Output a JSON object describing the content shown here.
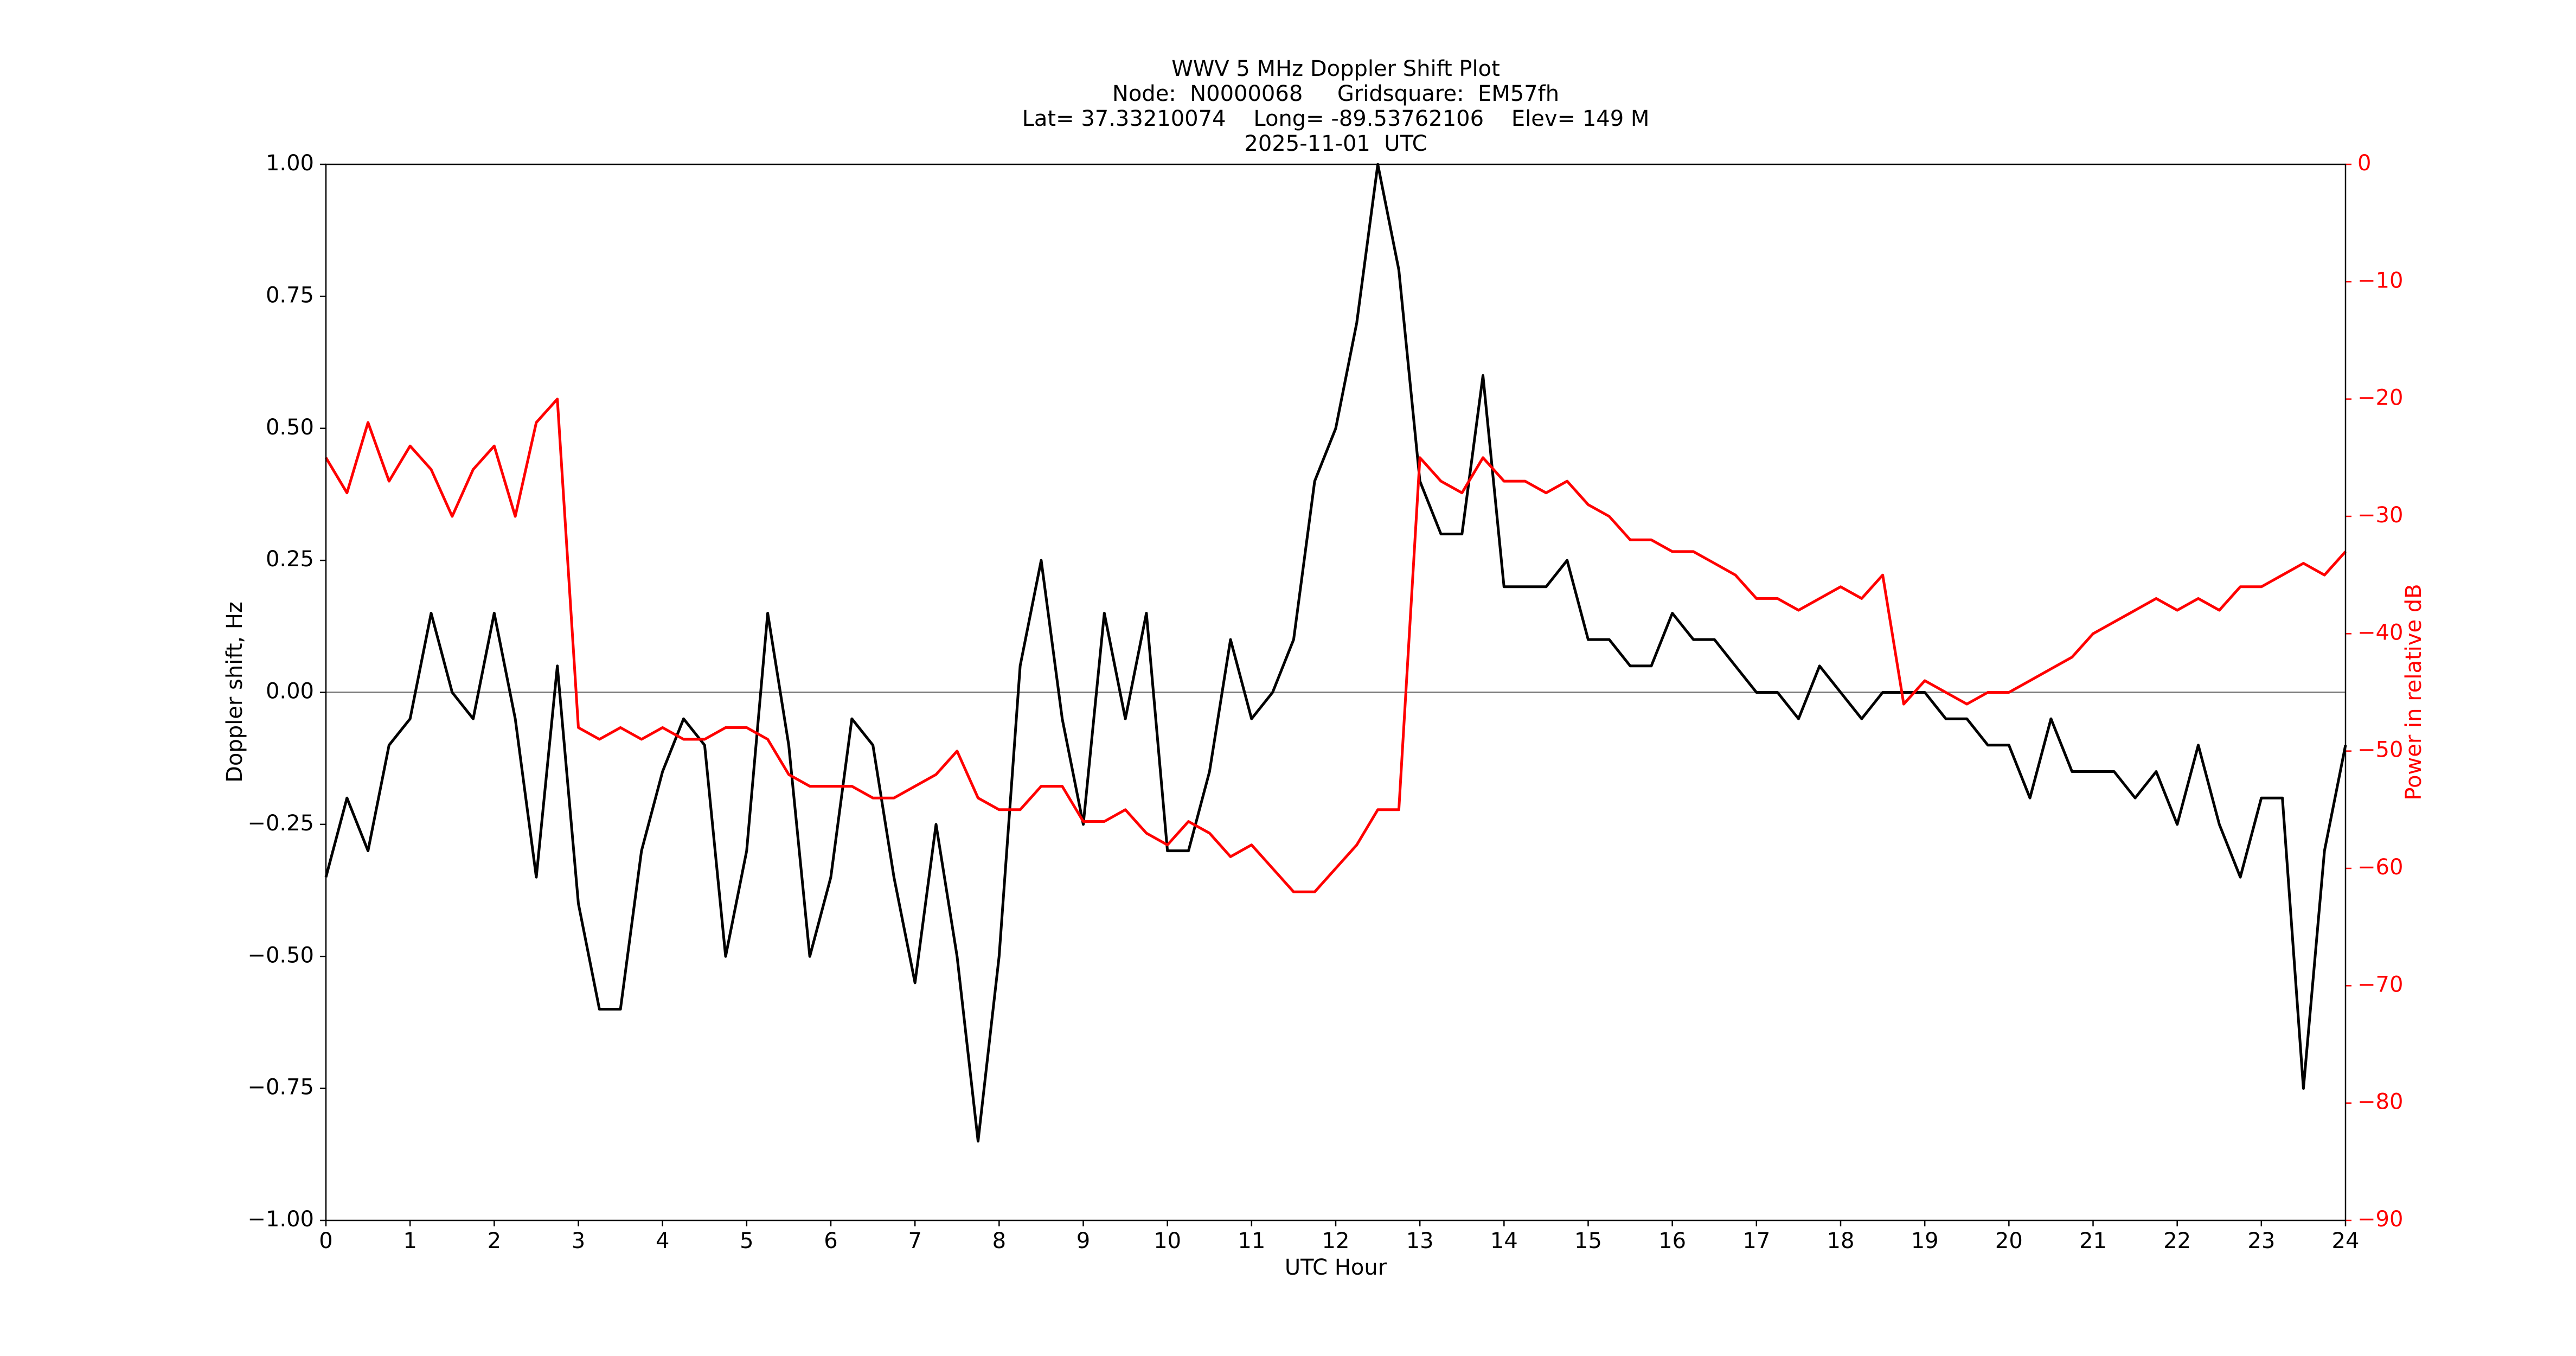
{
  "chart_data": {
    "type": "line",
    "title": [
      "WWV 5 MHz Doppler Shift Plot",
      "Node:  N0000068     Gridsquare:  EM57fh",
      "Lat= 37.33210074    Long= -89.53762106    Elev= 149 M",
      "2025-11-01  UTC"
    ],
    "x_label": "UTC Hour",
    "y_label": "Doppler shift, Hz",
    "y2_label": "Power in relative dB",
    "x": [
      0,
      0.25,
      0.5,
      0.75,
      1,
      1.25,
      1.5,
      1.75,
      2,
      2.25,
      2.5,
      2.75,
      3,
      3.25,
      3.5,
      3.75,
      4,
      4.25,
      4.5,
      4.75,
      5,
      5.25,
      5.5,
      5.75,
      6,
      6.25,
      6.5,
      6.75,
      7,
      7.25,
      7.5,
      7.75,
      8,
      8.25,
      8.5,
      8.75,
      9,
      9.25,
      9.5,
      9.75,
      10,
      10.25,
      10.5,
      10.75,
      11,
      11.25,
      11.5,
      11.75,
      12,
      12.25,
      12.5,
      12.75,
      13,
      13.25,
      13.5,
      13.75,
      14,
      14.25,
      14.5,
      14.75,
      15,
      15.25,
      15.5,
      15.75,
      16,
      16.25,
      16.5,
      16.75,
      17,
      17.25,
      17.5,
      17.75,
      18,
      18.25,
      18.5,
      18.75,
      19,
      19.25,
      19.5,
      19.75,
      20,
      20.25,
      20.5,
      20.75,
      21,
      21.25,
      21.5,
      21.75,
      22,
      22.25,
      22.5,
      22.75,
      23,
      23.25,
      23.5,
      23.75,
      24
    ],
    "series": [
      {
        "name": "Doppler shift",
        "color": "#000000",
        "values": [
          -0.35,
          -0.2,
          -0.3,
          -0.1,
          -0.05,
          0.15,
          0,
          -0.05,
          0.15,
          -0.05,
          -0.35,
          0.05,
          -0.4,
          -0.6,
          -0.6,
          -0.3,
          -0.15,
          -0.05,
          -0.1,
          -0.5,
          -0.3,
          0.15,
          -0.1,
          -0.5,
          -0.35,
          -0.05,
          -0.1,
          -0.35,
          -0.55,
          -0.25,
          -0.5,
          -0.85,
          -0.5,
          0.05,
          0.25,
          -0.05,
          -0.25,
          0.15,
          -0.05,
          0.15,
          -0.3,
          -0.3,
          -0.15,
          0.1,
          -0.05,
          0,
          0.1,
          0.4,
          0.5,
          0.7,
          1,
          0.8,
          0.4,
          0.3,
          0.3,
          0.6,
          0.2,
          0.2,
          0.2,
          0.25,
          0.1,
          0.1,
          0.05,
          0.05,
          0.15,
          0.1,
          0.1,
          0.05,
          0,
          0,
          -0.05,
          0.05,
          0,
          -0.05,
          0,
          0,
          0,
          -0.05,
          -0.05,
          -0.1,
          -0.1,
          -0.2,
          -0.05,
          -0.15,
          -0.15,
          -0.15,
          -0.2,
          -0.15,
          -0.25,
          -0.1,
          -0.25,
          -0.35,
          -0.2,
          -0.2,
          -0.75,
          -0.3,
          -0.1
        ]
      },
      {
        "name": "Power",
        "color": "#ff0000",
        "axis": "y2",
        "values": [
          -25,
          -28,
          -22,
          -27,
          -24,
          -26,
          -30,
          -26,
          -24,
          -30,
          -22,
          -20,
          -48,
          -49,
          -48,
          -49,
          -48,
          -49,
          -49,
          -48,
          -48,
          -49,
          -52,
          -53,
          -53,
          -53,
          -54,
          -54,
          -53,
          -52,
          -50,
          -54,
          -55,
          -55,
          -53,
          -53,
          -56,
          -56,
          -55,
          -57,
          -58,
          -56,
          -57,
          -59,
          -58,
          -60,
          -62,
          -62,
          -60,
          -58,
          -55,
          -55,
          -25,
          -27,
          -28,
          -25,
          -27,
          -27,
          -28,
          -27,
          -29,
          -30,
          -32,
          -32,
          -33,
          -33,
          -34,
          -35,
          -37,
          -37,
          -38,
          -37,
          -36,
          -37,
          -35,
          -46,
          -44,
          -45,
          -46,
          -45,
          -45,
          -44,
          -43,
          -42,
          -40,
          -39,
          -38,
          -37,
          -38,
          -37,
          -38,
          -36,
          -36,
          -35,
          -34,
          -35,
          -33
        ]
      }
    ],
    "reference_line": 0,
    "xlim": [
      0,
      24
    ],
    "xticks": [
      0,
      1,
      2,
      3,
      4,
      5,
      6,
      7,
      8,
      9,
      10,
      11,
      12,
      13,
      14,
      15,
      16,
      17,
      18,
      19,
      20,
      21,
      22,
      23,
      24
    ],
    "ylim": [
      -1,
      1
    ],
    "yticks": [
      {
        "value": -1,
        "label": "−1.00"
      },
      {
        "value": -0.75,
        "label": "−0.75"
      },
      {
        "value": -0.5,
        "label": "−0.50"
      },
      {
        "value": -0.25,
        "label": "−0.25"
      },
      {
        "value": 0,
        "label": "0.00"
      },
      {
        "value": 0.25,
        "label": "0.25"
      },
      {
        "value": 0.5,
        "label": "0.50"
      },
      {
        "value": 0.75,
        "label": "0.75"
      },
      {
        "value": 1,
        "label": "1.00"
      }
    ],
    "y2lim": [
      -90,
      0
    ],
    "y2ticks": [
      {
        "value": -90,
        "label": "−90"
      },
      {
        "value": -80,
        "label": "−80"
      },
      {
        "value": -70,
        "label": "−70"
      },
      {
        "value": -60,
        "label": "−60"
      },
      {
        "value": -50,
        "label": "−50"
      },
      {
        "value": -40,
        "label": "−40"
      },
      {
        "value": -30,
        "label": "−30"
      },
      {
        "value": -20,
        "label": "−20"
      },
      {
        "value": -10,
        "label": "−10"
      },
      0
    ],
    "grid": false
  }
}
